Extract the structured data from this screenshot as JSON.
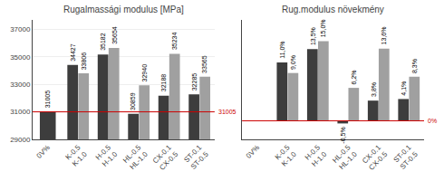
{
  "chart_data": [
    {
      "type": "bar",
      "title": "Rugalmassági modulus [MPa]",
      "categories": [
        "0V%",
        "K-0.5\nK-1.0",
        "H-0.5\nH-1.0",
        "HL-0.5\nHL-1.0",
        "CX-0.1\nCX-0.5",
        "ST-0.1\nST-0.5"
      ],
      "series": [
        {
          "color": "#3d3d3d",
          "values": [
            31005,
            34427,
            35182,
            30859,
            32188,
            32285
          ]
        },
        {
          "color": "#a0a0a0",
          "values": [
            null,
            33806,
            35654,
            32940,
            35234,
            33565
          ]
        }
      ],
      "ylim": [
        29000,
        37700
      ],
      "yticks": [
        29000,
        31000,
        33000,
        35000,
        37000
      ],
      "grid": true,
      "data_labels": true,
      "reference_lines": [
        {
          "y": 31005,
          "label": "31005",
          "color": "#cc0000"
        }
      ]
    },
    {
      "type": "bar",
      "title": "Rug.modulus növekmény",
      "categories": [
        "0V%",
        "K-0.5\nK-1.0",
        "H-0.5\nH-1.0",
        "HL-0.5\nHL-1.0",
        "CX-0.1\nCX-0.5",
        "ST-0.1\nST-0.5"
      ],
      "series": [
        {
          "color": "#3d3d3d",
          "values": [
            0.0,
            11.0,
            13.5,
            -0.5,
            3.8,
            4.1
          ],
          "value_labels": [
            null,
            "11,0%",
            "13,5%",
            "-0,5%",
            "3,8%",
            "4,1%"
          ]
        },
        {
          "color": "#a0a0a0",
          "values": [
            null,
            9.0,
            15.0,
            6.2,
            13.6,
            8.3
          ],
          "value_labels": [
            null,
            "9,0%",
            "15,0%",
            "6,2%",
            "13,6%",
            "8,3%"
          ]
        }
      ],
      "ylim": [
        -3.5,
        19
      ],
      "yticks": [],
      "tick_labels": "x",
      "grid": false,
      "data_labels": true,
      "reference_lines": [
        {
          "y": 0,
          "label": "0%",
          "color": "#cc0000"
        }
      ]
    }
  ]
}
